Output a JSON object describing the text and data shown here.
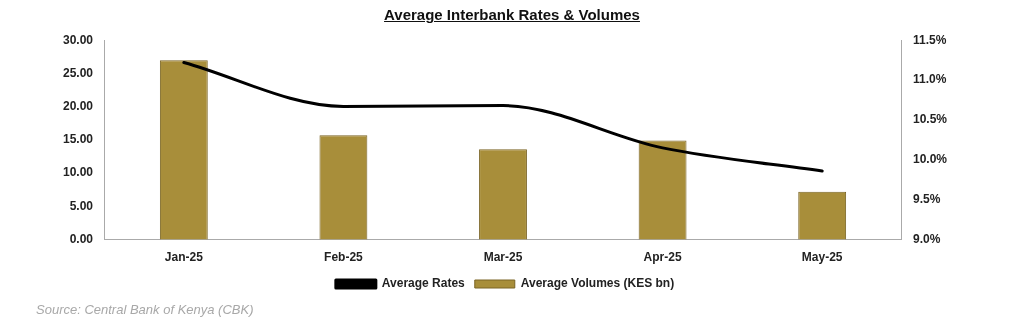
{
  "chart_data": {
    "type": "bar",
    "title": "Average Interbank Rates & Volumes",
    "categories": [
      "Jan-25",
      "Feb-25",
      "Mar-25",
      "Apr-25",
      "May-25"
    ],
    "series": [
      {
        "name": "Average Volumes (KES bn)",
        "color": "#a88e3a",
        "values": [
          27.0,
          15.7,
          13.6,
          14.9,
          7.2
        ]
      },
      {
        "name": "Average Rates",
        "type": "line",
        "axis": "y2",
        "color": "#000000",
        "values": [
          11.22,
          10.67,
          10.68,
          10.15,
          9.86
        ]
      }
    ],
    "ylim": [
      0,
      30
    ],
    "yticks": [
      {
        "value": 0,
        "label": "0.00"
      },
      {
        "value": 5,
        "label": "5.00"
      },
      {
        "value": 10,
        "label": "10.00"
      },
      {
        "value": 15,
        "label": "15.00"
      },
      {
        "value": 20,
        "label": "20.00"
      },
      {
        "value": 25,
        "label": "25.00"
      },
      {
        "value": 30,
        "label": "30.00"
      }
    ],
    "y2lim": [
      9,
      11.5
    ],
    "y2ticks": [
      {
        "value": 9,
        "label": "9.0%"
      },
      {
        "value": 9.5,
        "label": "9.5%"
      },
      {
        "value": 10,
        "label": "10.0%"
      },
      {
        "value": 10.5,
        "label": "10.5%"
      },
      {
        "value": 11,
        "label": "11.0%"
      },
      {
        "value": 11.5,
        "label": "11.5%"
      }
    ],
    "grid": false,
    "legend": "bottom",
    "marker": "none",
    "annotations": [
      "Source: Central Bank of Kenya (CBK)"
    ]
  }
}
